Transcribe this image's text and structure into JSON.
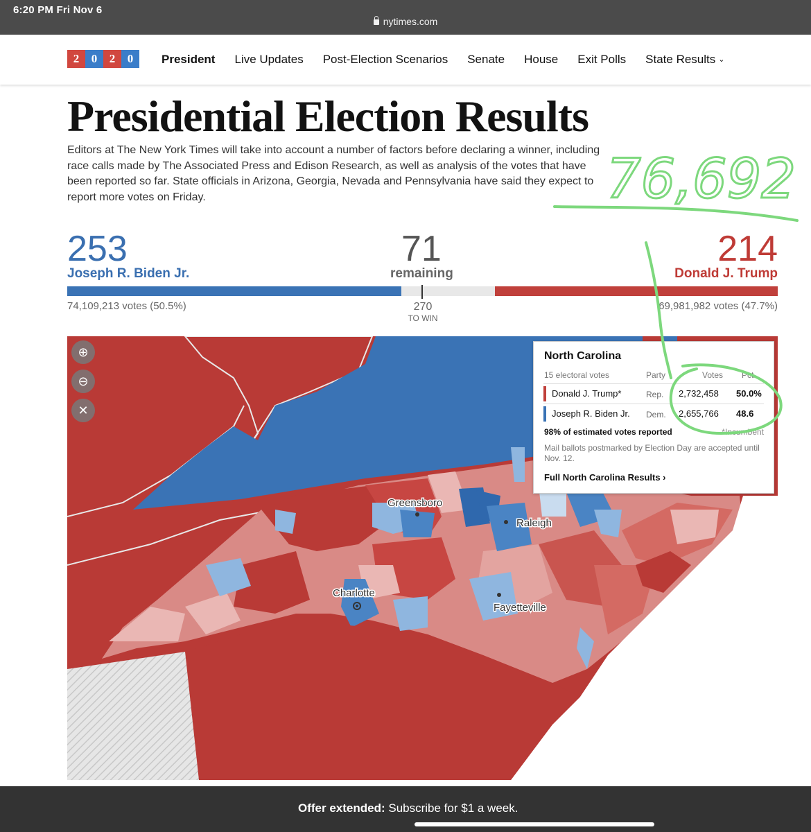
{
  "status": {
    "time": "6:20 PM   Fri Nov 6",
    "url": "nytimes.com"
  },
  "logo": {
    "digits": [
      "2",
      "0",
      "2",
      "0"
    ]
  },
  "nav": {
    "items": [
      "President",
      "Live Updates",
      "Post-Election Scenarios",
      "Senate",
      "House",
      "Exit Polls",
      "State Results"
    ],
    "active": "President"
  },
  "page": {
    "title": "Presidential Election Results",
    "intro": "Editors at The New York Times will take into account a number of factors before declaring a winner, including race calls made by The Associated Press and Edison Research, as well as analysis of the votes that have been reported so far. State officials in Arizona, Georgia, Nevada and Pennsylvania have said they expect to report more votes on Friday."
  },
  "tally": {
    "biden": {
      "electoral": "253",
      "name": "Joseph R. Biden Jr.",
      "votes": "74,109,213 votes (50.5%)",
      "color": "#3a73b5"
    },
    "trump": {
      "electoral": "214",
      "name": "Donald J. Trump",
      "votes": "69,981,982 votes (47.7%)",
      "color": "#c0403b"
    },
    "remaining": {
      "count": "71",
      "label": "remaining"
    },
    "to_win": {
      "number": "270",
      "label": "TO WIN"
    }
  },
  "map": {
    "cities": [
      "Greensboro",
      "Raleigh",
      "Charlotte",
      "Fayetteville"
    ],
    "controls": [
      "zoom-in-icon",
      "zoom-out-icon",
      "close-icon"
    ]
  },
  "popup": {
    "state": "North Carolina",
    "electoral_votes": "15 electoral votes",
    "headers": {
      "party": "Party",
      "votes": "Votes",
      "pct": "Pct."
    },
    "rows": [
      {
        "name": "Donald J. Trump*",
        "party": "Rep.",
        "votes": "2,732,458",
        "pct": "50.0%",
        "color": "#c0403b"
      },
      {
        "name": "Joseph R. Biden Jr.",
        "party": "Dem.",
        "votes": "2,655,766",
        "pct": "48.6",
        "color": "#3a73b5"
      }
    ],
    "reported": "98% of estimated votes reported",
    "incumbent": "*Incumbent",
    "mail_note": "Mail ballots postmarked by Election Day are accepted until Nov. 12.",
    "full_link": "Full North Carolina Results ›"
  },
  "annotation": {
    "handwritten_number": "76,692"
  },
  "offer": {
    "bold": "Offer extended:",
    "rest": " Subscribe for $1 a week."
  }
}
